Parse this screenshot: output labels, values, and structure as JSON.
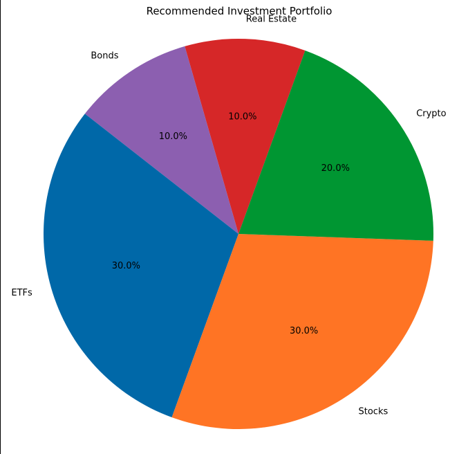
{
  "chart_data": {
    "type": "pie",
    "title": "Recommended Investment Portfolio",
    "labels": [
      "Real Estate",
      "Bonds",
      "ETFs",
      "Stocks",
      "Crypto"
    ],
    "values": [
      10.0,
      10.0,
      30.0,
      30.0,
      20.0
    ],
    "value_labels": [
      "10.0%",
      "10.0%",
      "30.0%",
      "30.0%",
      "20.0%"
    ],
    "colors": [
      "#d62728",
      "#8c5fb0",
      "#0068a8",
      "#ff7424",
      "#009632"
    ],
    "start_angle_deg": 70,
    "direction": "counterclockwise",
    "legend": "none",
    "grid": false
  }
}
